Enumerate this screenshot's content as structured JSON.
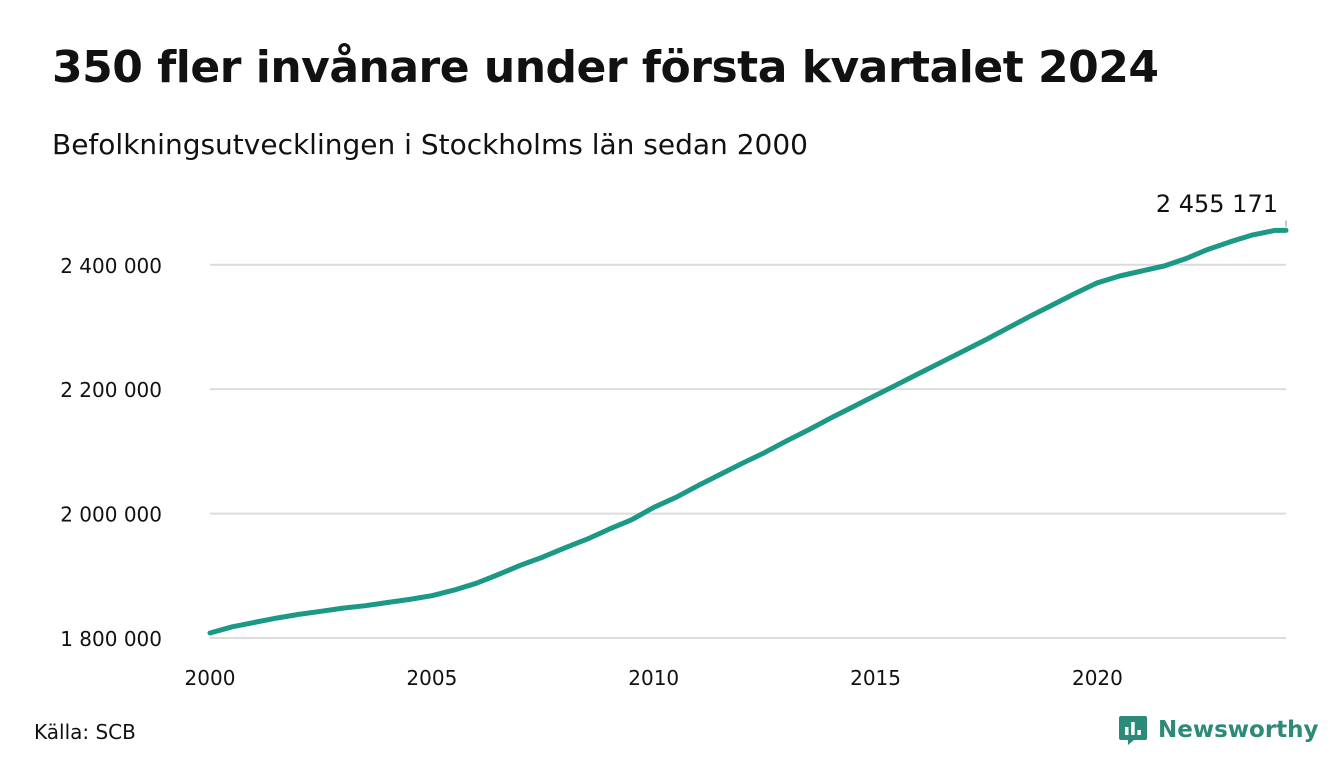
{
  "title": "350 fler invånare under första kvartalet 2024",
  "subtitle": "Befolkningsutvecklingen i Stockholms län sedan 2000",
  "source": "Källa: SCB",
  "brand": {
    "name": "Newsworthy",
    "icon": "newsworthy-logo-icon",
    "color": "#2c8a78"
  },
  "colors": {
    "line": "#1b9886",
    "grid": "#dcdcdc",
    "text": "#111111"
  },
  "chart_data": {
    "type": "line",
    "title": "350 fler invånare under första kvartalet 2024",
    "subtitle": "Befolkningsutvecklingen i Stockholms län sedan 2000",
    "xlabel": "",
    "ylabel": "",
    "xlim": [
      2000,
      2024.25
    ],
    "ylim": [
      1800000,
      2480000
    ],
    "x_ticks": [
      2000,
      2005,
      2010,
      2015,
      2020
    ],
    "x_tick_labels": [
      "2000",
      "2005",
      "2010",
      "2015",
      "2020"
    ],
    "y_ticks": [
      1800000,
      2000000,
      2200000,
      2400000
    ],
    "y_tick_labels": [
      "1 800 000",
      "2 000 000",
      "2 200 000",
      "2 400 000"
    ],
    "grid": true,
    "legend": "none",
    "end_label": "2 455 171",
    "series": [
      {
        "color": "#1b9886",
        "points": [
          [
            2000.0,
            1808000
          ],
          [
            2000.5,
            1818000
          ],
          [
            2001.0,
            1825000
          ],
          [
            2001.5,
            1832000
          ],
          [
            2002.0,
            1838000
          ],
          [
            2002.5,
            1843000
          ],
          [
            2003.0,
            1848000
          ],
          [
            2003.5,
            1852000
          ],
          [
            2004.0,
            1857000
          ],
          [
            2004.5,
            1862000
          ],
          [
            2005.0,
            1868000
          ],
          [
            2005.5,
            1877000
          ],
          [
            2006.0,
            1888000
          ],
          [
            2006.5,
            1902000
          ],
          [
            2007.0,
            1917000
          ],
          [
            2007.5,
            1930000
          ],
          [
            2008.0,
            1945000
          ],
          [
            2008.5,
            1959000
          ],
          [
            2009.0,
            1975000
          ],
          [
            2009.5,
            1990000
          ],
          [
            2010.0,
            2010000
          ],
          [
            2010.5,
            2026000
          ],
          [
            2011.0,
            2045000
          ],
          [
            2011.5,
            2063000
          ],
          [
            2012.0,
            2081000
          ],
          [
            2012.5,
            2098000
          ],
          [
            2013.0,
            2117000
          ],
          [
            2013.5,
            2135000
          ],
          [
            2014.0,
            2154000
          ],
          [
            2014.5,
            2172000
          ],
          [
            2015.0,
            2190000
          ],
          [
            2015.5,
            2208000
          ],
          [
            2016.0,
            2226000
          ],
          [
            2016.5,
            2244000
          ],
          [
            2017.0,
            2262000
          ],
          [
            2017.5,
            2280000
          ],
          [
            2018.0,
            2299000
          ],
          [
            2018.5,
            2318000
          ],
          [
            2019.0,
            2336000
          ],
          [
            2019.5,
            2354000
          ],
          [
            2020.0,
            2371000
          ],
          [
            2020.5,
            2382000
          ],
          [
            2021.0,
            2390000
          ],
          [
            2021.5,
            2398000
          ],
          [
            2022.0,
            2410000
          ],
          [
            2022.5,
            2425000
          ],
          [
            2023.0,
            2437000
          ],
          [
            2023.5,
            2448000
          ],
          [
            2024.0,
            2455171
          ]
        ]
      }
    ]
  }
}
